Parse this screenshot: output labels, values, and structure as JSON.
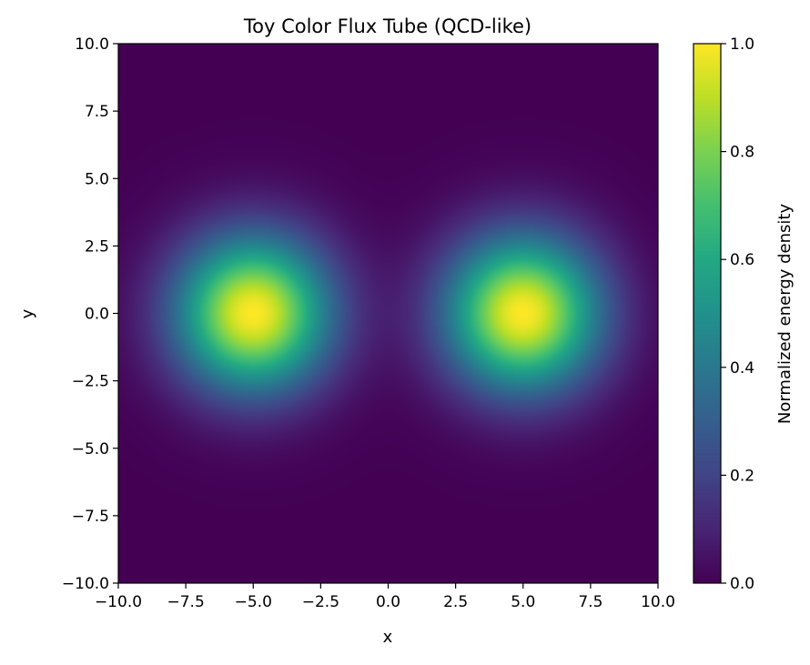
{
  "chart_data": {
    "type": "heatmap",
    "title": "Toy Color Flux Tube (QCD-like)",
    "xlabel": "x",
    "ylabel": "y",
    "xlim": [
      -10,
      10
    ],
    "ylim": [
      -10,
      10
    ],
    "xticks": [
      -10,
      -7.5,
      -5,
      -2.5,
      0,
      2.5,
      5,
      7.5,
      10
    ],
    "yticks": [
      -10,
      -7.5,
      -5,
      -2.5,
      0,
      2.5,
      5,
      7.5,
      10
    ],
    "xtick_labels": [
      "−10.0",
      "−7.5",
      "−5.0",
      "−2.5",
      "0.0",
      "2.5",
      "5.0",
      "7.5",
      "10.0"
    ],
    "ytick_labels": [
      "−10.0",
      "−7.5",
      "−5.0",
      "−2.5",
      "0.0",
      "2.5",
      "5.0",
      "7.5",
      "10.0"
    ],
    "colormap": "viridis",
    "colorbar": {
      "label": "Normalized energy density",
      "range": [
        0,
        1
      ],
      "ticks": [
        0,
        0.2,
        0.4,
        0.6,
        0.8,
        1.0
      ],
      "tick_labels": [
        "0.0",
        "0.2",
        "0.4",
        "0.6",
        "0.8",
        "1.0"
      ]
    },
    "peaks": [
      {
        "x": -5,
        "y": 0,
        "value": 1.0
      },
      {
        "x": 5,
        "y": 0,
        "value": 1.0
      }
    ],
    "peak_width": 2.0,
    "grid": false,
    "legend": "none"
  }
}
